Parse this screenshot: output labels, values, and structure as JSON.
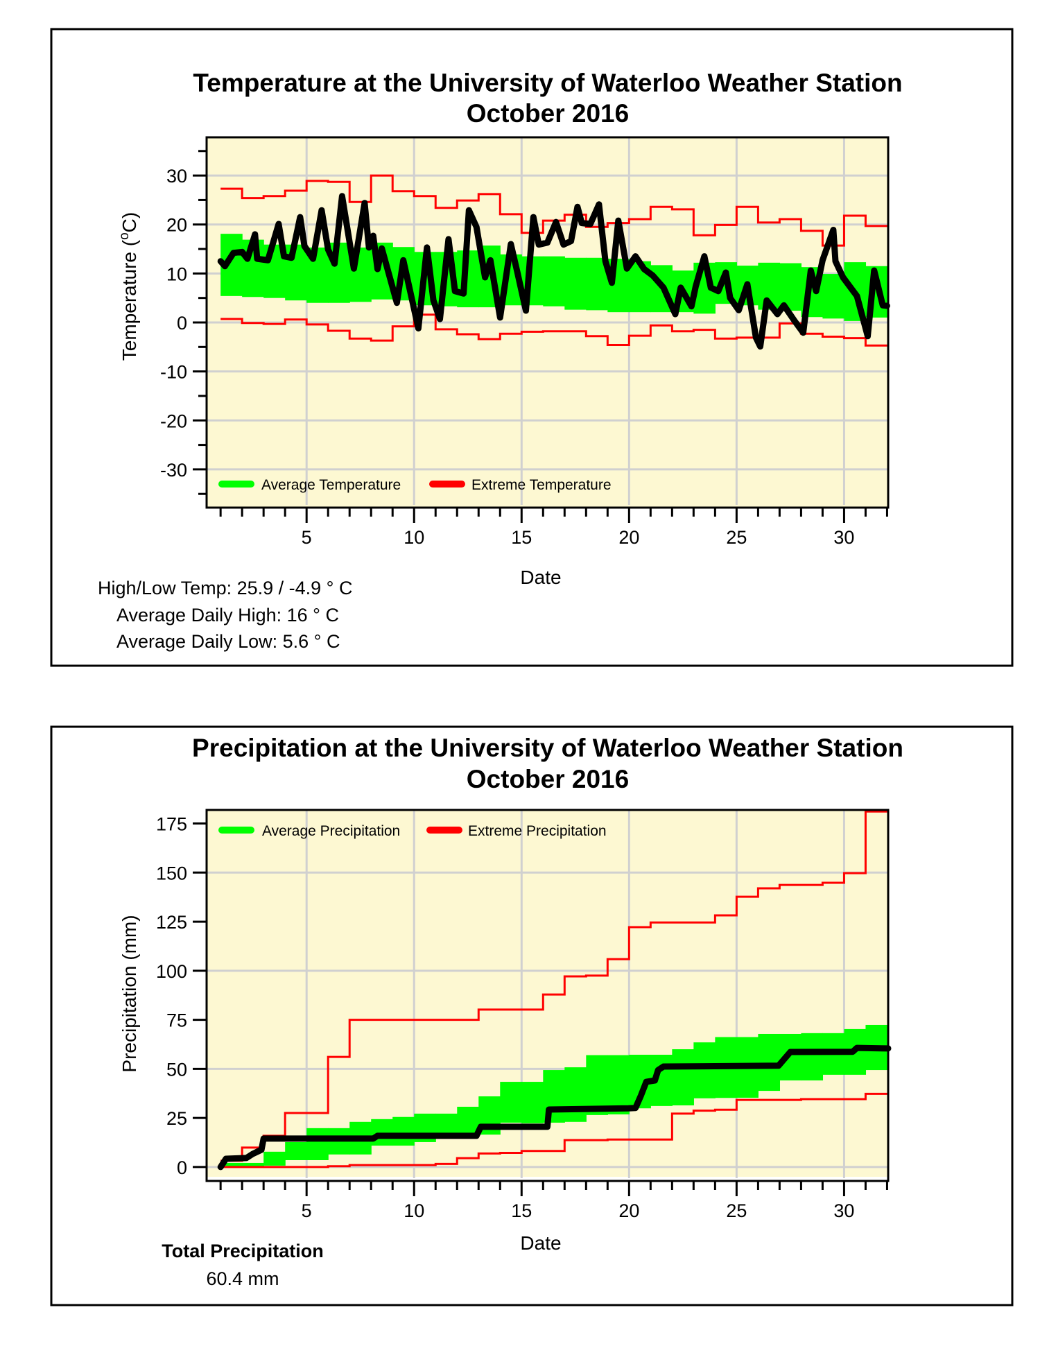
{
  "colors": {
    "plot_background": "#fdf8d2",
    "grid": "#d0d0d0",
    "average_band": "#00ff00",
    "extreme_line": "#ff0000",
    "observed_line": "#000000"
  },
  "chart_data": [
    {
      "type": "line",
      "title": "Temperature at the University of Waterloo Weather Station",
      "subtitle": "October 2016",
      "xlabel": "Date",
      "ylabel": "Temperature (",
      "ylabel_sup": "o",
      "ylabel_end": "C)",
      "xlim": [
        0.35,
        32.05
      ],
      "ylim": [
        -37.8,
        37.8
      ],
      "x_ticks": [
        5,
        10,
        15,
        20,
        25,
        30
      ],
      "x_tick_labels": [
        "5",
        "10",
        "15",
        "20",
        "25",
        "30"
      ],
      "y_ticks": [
        30,
        20,
        10,
        0,
        -10,
        -20,
        -30
      ],
      "y_tick_labels": [
        "30",
        "20",
        "10",
        "0",
        "-10",
        "-20",
        "-30"
      ],
      "grid": true,
      "legend_position": "bottom-left",
      "legend": [
        {
          "label": "Average Temperature",
          "color": "#00ff00"
        },
        {
          "label": "Extreme Temperature",
          "color": "#ff0000"
        }
      ],
      "days": [
        1,
        2,
        3,
        4,
        5,
        6,
        7,
        8,
        9,
        10,
        11,
        12,
        13,
        14,
        15,
        16,
        17,
        18,
        19,
        20,
        21,
        22,
        23,
        24,
        25,
        26,
        27,
        28,
        29,
        30,
        31
      ],
      "average_band_high": [
        18.1,
        16.9,
        15.9,
        15.9,
        15.3,
        16.3,
        15.3,
        16.3,
        15.4,
        14.4,
        14.4,
        14.7,
        15.7,
        13.9,
        13.5,
        13.5,
        13.2,
        13.2,
        13.0,
        12.5,
        11.7,
        10.6,
        12.2,
        12.3,
        11.6,
        12.2,
        12.1,
        11.3,
        9.9,
        12.3,
        11.5
      ],
      "average_band_low": [
        5.4,
        5.2,
        5.0,
        4.5,
        4.0,
        4.0,
        4.2,
        4.7,
        4.5,
        3.5,
        3.3,
        3.1,
        3.1,
        3.5,
        3.5,
        3.3,
        2.6,
        2.5,
        2.1,
        2.1,
        2.1,
        2.1,
        1.8,
        3.8,
        3.5,
        2.6,
        2.4,
        1.1,
        0.8,
        0.3,
        1.0
      ],
      "extreme_high": [
        27.3,
        25.4,
        25.8,
        26.9,
        28.9,
        28.7,
        24.6,
        30.0,
        26.8,
        25.8,
        23.4,
        24.9,
        26.2,
        22.1,
        18.3,
        20.8,
        22.0,
        19.5,
        20.3,
        21.1,
        23.6,
        23.1,
        17.8,
        19.9,
        23.6,
        20.4,
        21.1,
        18.7,
        15.7,
        21.8,
        19.7
      ],
      "extreme_low": [
        0.7,
        -0.1,
        -0.3,
        0.6,
        -0.4,
        -1.7,
        -3.3,
        -3.7,
        -0.8,
        1.6,
        -1.4,
        -2.4,
        -3.4,
        -2.3,
        -1.9,
        -1.8,
        -1.8,
        -2.8,
        -4.6,
        -2.7,
        -0.6,
        -1.8,
        -1.5,
        -3.3,
        -3.1,
        -3.1,
        -0.2,
        -2.3,
        -2.9,
        -3.2,
        -4.7
      ],
      "observed": {
        "name": "Observed Temperature",
        "x": [
          1.0,
          1.2,
          1.6,
          2.0,
          2.25,
          2.6,
          2.7,
          3.2,
          3.7,
          3.95,
          4.3,
          4.7,
          4.9,
          5.3,
          5.7,
          6.0,
          6.3,
          6.65,
          7.2,
          7.7,
          7.9,
          8.1,
          8.3,
          8.5,
          9.2,
          9.5,
          10.2,
          10.6,
          10.9,
          11.2,
          11.6,
          11.9,
          12.3,
          12.55,
          12.9,
          13.3,
          13.55,
          14.0,
          14.5,
          14.8,
          15.2,
          15.55,
          15.8,
          16.2,
          16.6,
          16.95,
          17.3,
          17.6,
          17.8,
          18.2,
          18.6,
          18.9,
          19.2,
          19.5,
          19.9,
          20.3,
          20.7,
          21.1,
          21.6,
          22.15,
          22.4,
          22.9,
          23.1,
          23.5,
          23.8,
          24.15,
          24.5,
          24.7,
          25.1,
          25.5,
          25.9,
          26.1,
          26.4,
          26.9,
          27.2,
          27.7,
          28.1,
          28.45,
          28.7,
          29.0,
          29.5,
          29.6,
          29.95,
          30.6,
          31.1,
          31.4,
          31.8,
          32.0
        ],
        "y": [
          12.5,
          11.5,
          14.2,
          14.4,
          13.0,
          18.0,
          13.0,
          12.7,
          20.1,
          13.5,
          13.2,
          21.5,
          15.6,
          13.0,
          22.9,
          14.9,
          12.0,
          25.8,
          11.0,
          24.4,
          15.3,
          17.7,
          10.9,
          15.1,
          4.0,
          12.7,
          -1.2,
          15.3,
          4.5,
          0.7,
          17.0,
          6.4,
          5.9,
          22.9,
          19.5,
          9.2,
          12.7,
          1.0,
          16.0,
          10.3,
          2.4,
          21.5,
          15.9,
          16.3,
          20.5,
          15.9,
          16.6,
          23.6,
          20.3,
          20.1,
          24.1,
          12.5,
          8.1,
          20.8,
          11.0,
          13.5,
          10.9,
          9.6,
          7.1,
          1.7,
          7.1,
          3.3,
          7.4,
          13.5,
          7.1,
          6.4,
          10.2,
          5.0,
          2.5,
          7.8,
          -3.1,
          -4.9,
          4.5,
          1.7,
          3.5,
          0.3,
          -2.1,
          10.6,
          6.4,
          12.7,
          18.9,
          12.5,
          9.2,
          5.4,
          -2.8,
          10.6,
          3.5,
          3.4
        ]
      }
    },
    {
      "type": "line",
      "title": "Precipitation at the University of Waterloo Weather Station",
      "subtitle": "October 2016",
      "xlabel": "Date",
      "ylabel": "Precipitation (mm)",
      "xlim": [
        0.35,
        32.05
      ],
      "ylim": [
        -7.1,
        181.9
      ],
      "x_ticks": [
        5,
        10,
        15,
        20,
        25,
        30
      ],
      "x_tick_labels": [
        "5",
        "10",
        "15",
        "20",
        "25",
        "30"
      ],
      "y_ticks": [
        175,
        150,
        125,
        100,
        75,
        50,
        25,
        0
      ],
      "y_tick_labels": [
        "175",
        "150",
        "125",
        "100",
        "75",
        "50",
        "25",
        "0"
      ],
      "y_grid_values": [
        150,
        100,
        50,
        0
      ],
      "grid": true,
      "legend_position": "top-left",
      "legend": [
        {
          "label": "Average Precipitation",
          "color": "#00ff00"
        },
        {
          "label": "Extreme Precipitation",
          "color": "#ff0000"
        }
      ],
      "days": [
        1,
        2,
        3,
        4,
        5,
        6,
        7,
        8,
        9,
        10,
        11,
        12,
        13,
        14,
        15,
        16,
        17,
        18,
        19,
        20,
        21,
        22,
        23,
        24,
        25,
        26,
        27,
        28,
        29,
        30,
        31
      ],
      "average_band_high": [
        2.1,
        2.1,
        7.8,
        12.7,
        19.8,
        19.8,
        23.0,
        24.4,
        25.5,
        27.2,
        27.2,
        30.7,
        36.0,
        43.4,
        43.4,
        49.4,
        50.8,
        57.0,
        57.0,
        57.2,
        57.2,
        60.0,
        63.5,
        66.2,
        66.2,
        67.8,
        67.8,
        68.2,
        68.2,
        70.3,
        72.4
      ],
      "average_band_low": [
        0.0,
        0.0,
        0.7,
        3.5,
        3.5,
        6.4,
        6.4,
        10.9,
        10.9,
        12.7,
        16.5,
        16.5,
        16.5,
        22.6,
        22.3,
        22.6,
        23.0,
        26.5,
        26.8,
        29.9,
        31.1,
        31.4,
        35.0,
        35.2,
        35.3,
        38.8,
        44.1,
        44.1,
        47.0,
        47.0,
        49.4
      ],
      "extreme_high": [
        3.2,
        9.9,
        15.9,
        27.5,
        27.5,
        56.1,
        75.0,
        75.0,
        75.0,
        75.0,
        75.0,
        75.0,
        80.2,
        80.2,
        80.2,
        87.9,
        97.1,
        97.5,
        105.9,
        122.2,
        124.6,
        124.6,
        124.6,
        128.2,
        137.7,
        142.0,
        143.7,
        143.7,
        144.8,
        149.7,
        181.1
      ],
      "extreme_low": [
        0.0,
        0.0,
        0.0,
        0.0,
        0.0,
        0.4,
        1.0,
        1.0,
        1.0,
        1.0,
        1.6,
        4.5,
        6.9,
        7.2,
        8.2,
        8.2,
        13.7,
        13.7,
        14.0,
        14.0,
        14.0,
        27.2,
        28.7,
        29.2,
        34.2,
        34.2,
        34.2,
        34.6,
        34.6,
        34.6,
        37.3
      ],
      "observed": {
        "name": "Observed Precipitation",
        "x": [
          1.0,
          1.25,
          2.2,
          2.5,
          2.9,
          3.0,
          3.1,
          8.1,
          8.3,
          12.9,
          13.1,
          16.2,
          16.27,
          19.97,
          20.3,
          20.55,
          20.8,
          21.2,
          21.35,
          21.6,
          26.95,
          27.5,
          30.4,
          30.6,
          32.05
        ],
        "y": [
          0.0,
          4.2,
          4.6,
          6.7,
          8.8,
          14.5,
          14.5,
          14.5,
          15.9,
          15.9,
          20.5,
          20.5,
          29.3,
          29.9,
          30.1,
          36.4,
          43.4,
          44.1,
          49.4,
          51.2,
          51.6,
          58.6,
          58.7,
          60.7,
          60.4
        ]
      }
    }
  ],
  "temperature_panel": {
    "stats": {
      "high_low": "High/Low Temp:  25.9 / -4.9 ° C",
      "avg_high": "Average Daily High:  16 ° C",
      "avg_low": "Average Daily Low:  5.6 ° C"
    }
  },
  "precipitation_panel": {
    "total_label": "Total Precipitation",
    "total_value": "60.4 mm"
  }
}
